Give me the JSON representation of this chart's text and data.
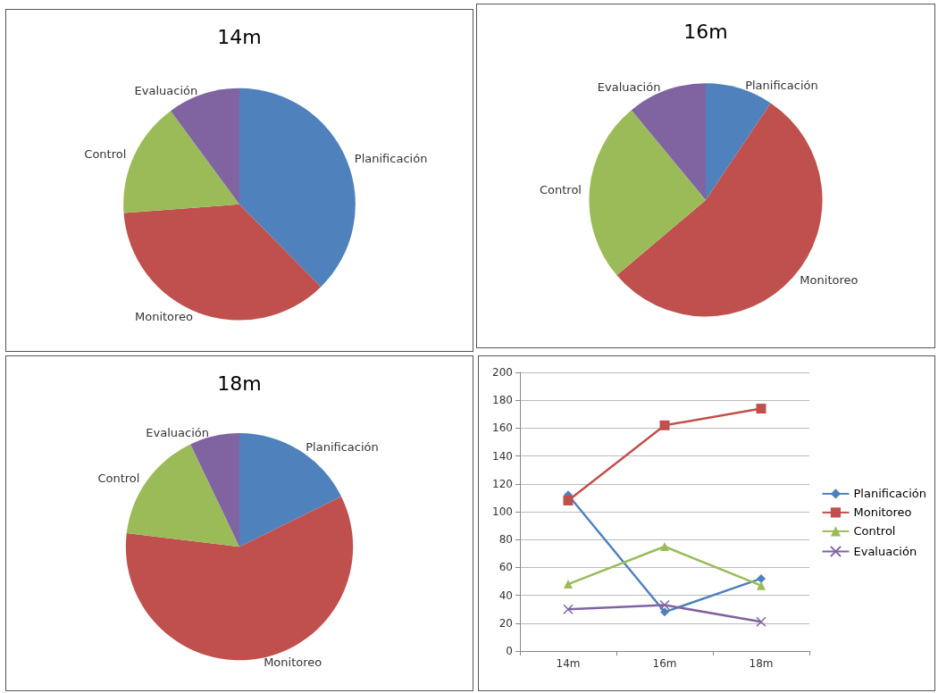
{
  "chart_data": [
    {
      "type": "pie",
      "title": "14m",
      "categories": [
        "Planificación",
        "Monitoreo",
        "Control",
        "Evaluación"
      ],
      "values": [
        37.6,
        36.2,
        16.1,
        10.1
      ],
      "colors": [
        "#4f81bd",
        "#c0504d",
        "#9bbb59",
        "#8064a2"
      ],
      "legend": false
    },
    {
      "type": "pie",
      "title": "16m",
      "categories": [
        "Planificación",
        "Monitoreo",
        "Control",
        "Evaluación"
      ],
      "values": [
        9.4,
        54.4,
        25.2,
        11.0
      ],
      "colors": [
        "#4f81bd",
        "#c0504d",
        "#9bbb59",
        "#8064a2"
      ],
      "legend": false
    },
    {
      "type": "pie",
      "title": "18m",
      "categories": [
        "Planificación",
        "Monitoreo",
        "Control",
        "Evaluación"
      ],
      "values": [
        17.7,
        59.2,
        16.0,
        7.1
      ],
      "colors": [
        "#4f81bd",
        "#c0504d",
        "#9bbb59",
        "#8064a2"
      ],
      "legend": false
    },
    {
      "type": "line",
      "categories": [
        "14m",
        "16m",
        "18m"
      ],
      "ylim": [
        0,
        200
      ],
      "yticks": [
        0,
        20,
        40,
        60,
        80,
        100,
        120,
        140,
        160,
        180,
        200
      ],
      "grid": "y",
      "legend": "right",
      "series": [
        {
          "name": "Planificación",
          "color": "#4f81bd",
          "marker": "diamond",
          "values": [
            112,
            28,
            52
          ]
        },
        {
          "name": "Monitoreo",
          "color": "#c0504d",
          "marker": "square",
          "values": [
            108,
            162,
            174
          ]
        },
        {
          "name": "Control",
          "color": "#9bbb59",
          "marker": "triangle",
          "values": [
            48,
            75,
            47
          ]
        },
        {
          "name": "Evaluación",
          "color": "#8064a2",
          "marker": "cross",
          "values": [
            30,
            33,
            21
          ]
        }
      ]
    }
  ]
}
